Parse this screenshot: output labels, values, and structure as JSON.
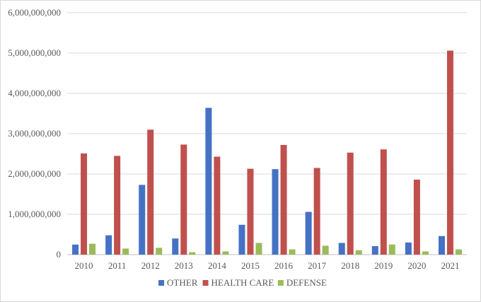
{
  "chart_data": {
    "type": "bar",
    "title": "",
    "xlabel": "",
    "ylabel": "",
    "categories": [
      "2010",
      "2011",
      "2012",
      "2013",
      "2014",
      "2015",
      "2016",
      "2017",
      "2018",
      "2019",
      "2020",
      "2021"
    ],
    "ylim": [
      0,
      6000000000
    ],
    "yticks": [
      0,
      1000000000,
      2000000000,
      3000000000,
      4000000000,
      5000000000,
      6000000000
    ],
    "ytick_labels": [
      "0",
      "1,000,000,000",
      "2,000,000,000",
      "3,000,000,000",
      "4,000,000,000",
      "5,000,000,000",
      "6,000,000,000"
    ],
    "grid": true,
    "legend_position": "bottom",
    "series": [
      {
        "name": "OTHER",
        "color": "#4472c4",
        "values": [
          250000000,
          480000000,
          1730000000,
          400000000,
          3640000000,
          740000000,
          2120000000,
          1060000000,
          290000000,
          210000000,
          300000000,
          460000000
        ]
      },
      {
        "name": "HEALTH CARE",
        "color": "#c0504d",
        "values": [
          2510000000,
          2450000000,
          3100000000,
          2730000000,
          2430000000,
          2130000000,
          2720000000,
          2150000000,
          2530000000,
          2610000000,
          1860000000,
          5060000000
        ]
      },
      {
        "name": "DEFENSE",
        "color": "#9bbb59",
        "values": [
          270000000,
          150000000,
          170000000,
          60000000,
          80000000,
          290000000,
          130000000,
          220000000,
          110000000,
          250000000,
          80000000,
          130000000
        ]
      }
    ]
  }
}
